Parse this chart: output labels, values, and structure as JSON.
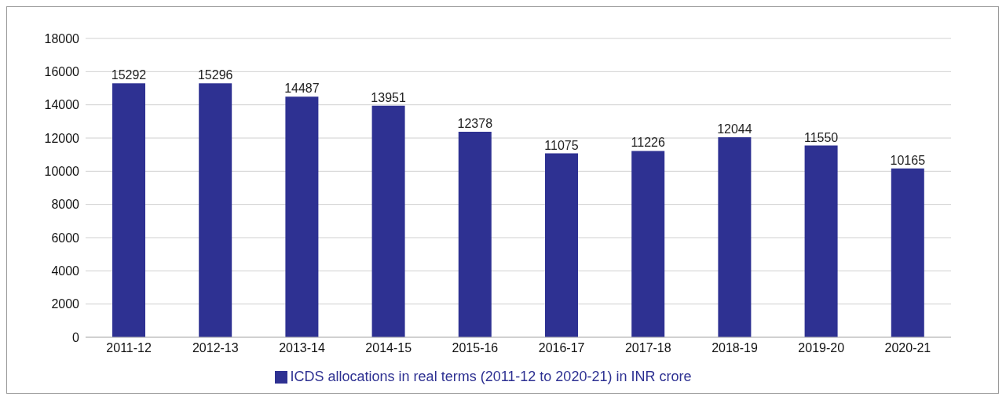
{
  "chart_data": {
    "type": "bar",
    "categories": [
      "2011-12",
      "2012-13",
      "2013-14",
      "2014-15",
      "2015-16",
      "2016-17",
      "2017-18",
      "2018-19",
      "2019-20",
      "2020-21"
    ],
    "series": [
      {
        "name": "ICDS allocations in real terms (2011-12 to 2020-21) in INR crore",
        "color": "#2e3192",
        "values": [
          15292,
          15296,
          14487,
          13951,
          12378,
          11075,
          11226,
          12044,
          11550,
          10165
        ]
      }
    ],
    "ylim": [
      0,
      18000
    ],
    "yticks": [
      0,
      2000,
      4000,
      6000,
      8000,
      10000,
      12000,
      14000,
      16000,
      18000
    ],
    "grid": "y",
    "legend": "bottom",
    "data_labels": true
  }
}
